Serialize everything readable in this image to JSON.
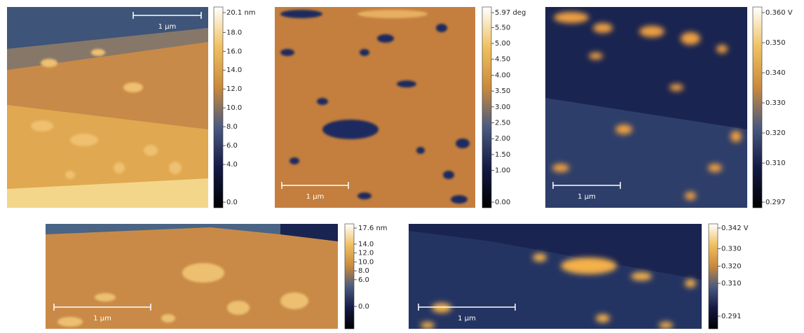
{
  "panels": [
    {
      "scale_bar": "1 µm",
      "colorbar": {
        "lim": [
          0,
          20.1
        ],
        "ticks": [
          {
            "value": 20.1,
            "label": "20.1 nm"
          },
          {
            "value": 18,
            "label": "18.0"
          },
          {
            "value": 16,
            "label": "16.0"
          },
          {
            "value": 14,
            "label": "14.0"
          },
          {
            "value": 12,
            "label": "12.0"
          },
          {
            "value": 10,
            "label": "10.0"
          },
          {
            "value": 8,
            "label": "8.0"
          },
          {
            "value": 6,
            "label": "6.0"
          },
          {
            "value": 4,
            "label": "4.0"
          },
          {
            "value": 0,
            "label": "0.0"
          }
        ]
      }
    },
    {
      "scale_bar": "1 µm",
      "colorbar": {
        "lim": [
          0,
          5.97
        ],
        "ticks": [
          {
            "value": 5.97,
            "label": "5.97 deg"
          },
          {
            "value": 5.5,
            "label": "5.50"
          },
          {
            "value": 5,
            "label": "5.00"
          },
          {
            "value": 4.5,
            "label": "4.50"
          },
          {
            "value": 4,
            "label": "4.00"
          },
          {
            "value": 3.5,
            "label": "3.50"
          },
          {
            "value": 3,
            "label": "3.00"
          },
          {
            "value": 2.5,
            "label": "2.50"
          },
          {
            "value": 2,
            "label": "2.00"
          },
          {
            "value": 1.5,
            "label": "1.50"
          },
          {
            "value": 1,
            "label": "1.00"
          },
          {
            "value": 0,
            "label": "0.00"
          }
        ]
      }
    },
    {
      "scale_bar": "1 µm",
      "colorbar": {
        "lim": [
          0.297,
          0.36
        ],
        "ticks": [
          {
            "value": 0.36,
            "label": "0.360 V"
          },
          {
            "value": 0.35,
            "label": "0.350"
          },
          {
            "value": 0.34,
            "label": "0.340"
          },
          {
            "value": 0.33,
            "label": "0.330"
          },
          {
            "value": 0.32,
            "label": "0.320"
          },
          {
            "value": 0.31,
            "label": "0.310"
          },
          {
            "value": 0.297,
            "label": "0.297"
          }
        ]
      }
    },
    {
      "scale_bar": "1 µm",
      "colorbar": {
        "lim": [
          0,
          17.6
        ],
        "ticks": [
          {
            "value": 17.6,
            "label": "17.6 nm"
          },
          {
            "value": 14,
            "label": "14.0"
          },
          {
            "value": 12,
            "label": "12.0"
          },
          {
            "value": 10,
            "label": "10.0"
          },
          {
            "value": 8,
            "label": "8.0"
          },
          {
            "value": 6,
            "label": "6.0"
          },
          {
            "value": 0,
            "label": "0.0"
          }
        ]
      }
    },
    {
      "scale_bar": "1 µm",
      "colorbar": {
        "lim": [
          0.291,
          0.342
        ],
        "ticks": [
          {
            "value": 0.342,
            "label": "0.342 V"
          },
          {
            "value": 0.33,
            "label": "0.330"
          },
          {
            "value": 0.32,
            "label": "0.320"
          },
          {
            "value": 0.31,
            "label": "0.310"
          },
          {
            "value": 0.291,
            "label": "0.291"
          }
        ]
      }
    }
  ]
}
